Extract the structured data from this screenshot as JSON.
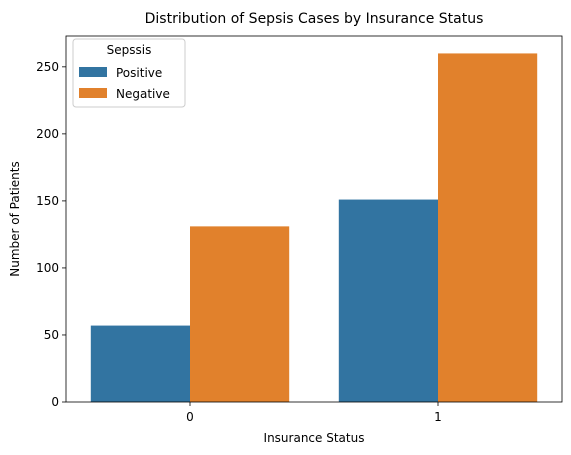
{
  "chart_data": {
    "type": "bar",
    "title": "Distribution of Sepsis Cases by Insurance Status",
    "xlabel": "Insurance Status",
    "ylabel": "Number of Patients",
    "categories": [
      "0",
      "1"
    ],
    "series": [
      {
        "name": "Positive",
        "values": [
          57,
          151
        ],
        "color": "#3274a1"
      },
      {
        "name": "Negative",
        "values": [
          131,
          260
        ],
        "color": "#e1812c"
      }
    ],
    "ylim": [
      0,
      273
    ],
    "yticks": [
      0,
      50,
      100,
      150,
      200,
      250
    ],
    "grid": false,
    "legend": {
      "title": "Sepssis",
      "placement": "top-left"
    }
  }
}
